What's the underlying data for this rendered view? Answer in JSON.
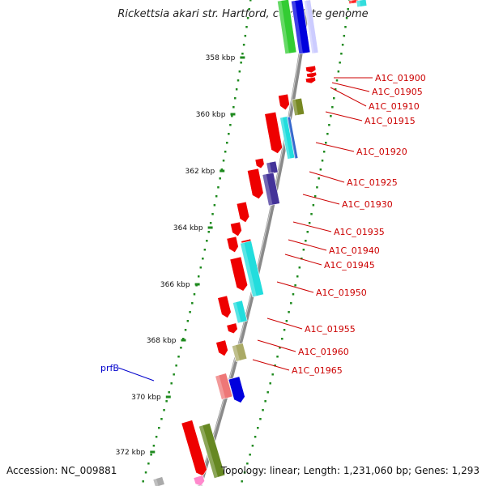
{
  "title": "Rickettsia akari str. Hartford, complete genome",
  "footer": {
    "accession": "Accession: NC_009881",
    "summary": "Topology: linear; Length: 1,231,060 bp; Genes: 1,293"
  },
  "colors": {
    "backbone": "#8a8a8a",
    "tick": "#1e8a1e",
    "label_red": "#cc0000",
    "label_blue": "#0000cc"
  },
  "ticks": [
    "358 kbp",
    "360 kbp",
    "362 kbp",
    "364 kbp",
    "366 kbp",
    "368 kbp",
    "370 kbp",
    "372 kbp"
  ],
  "gene_labels": [
    {
      "name": "A1C_01900",
      "color": "red"
    },
    {
      "name": "A1C_01905",
      "color": "red"
    },
    {
      "name": "A1C_01910",
      "color": "red"
    },
    {
      "name": "A1C_01915",
      "color": "red"
    },
    {
      "name": "A1C_01920",
      "color": "red"
    },
    {
      "name": "A1C_01925",
      "color": "red"
    },
    {
      "name": "A1C_01930",
      "color": "red"
    },
    {
      "name": "A1C_01935",
      "color": "red"
    },
    {
      "name": "A1C_01940",
      "color": "red"
    },
    {
      "name": "A1C_01945",
      "color": "red"
    },
    {
      "name": "A1C_01950",
      "color": "red"
    },
    {
      "name": "A1C_01955",
      "color": "red"
    },
    {
      "name": "A1C_01960",
      "color": "red"
    },
    {
      "name": "A1C_01965",
      "color": "red"
    },
    {
      "name": "prfB",
      "color": "blue"
    }
  ]
}
